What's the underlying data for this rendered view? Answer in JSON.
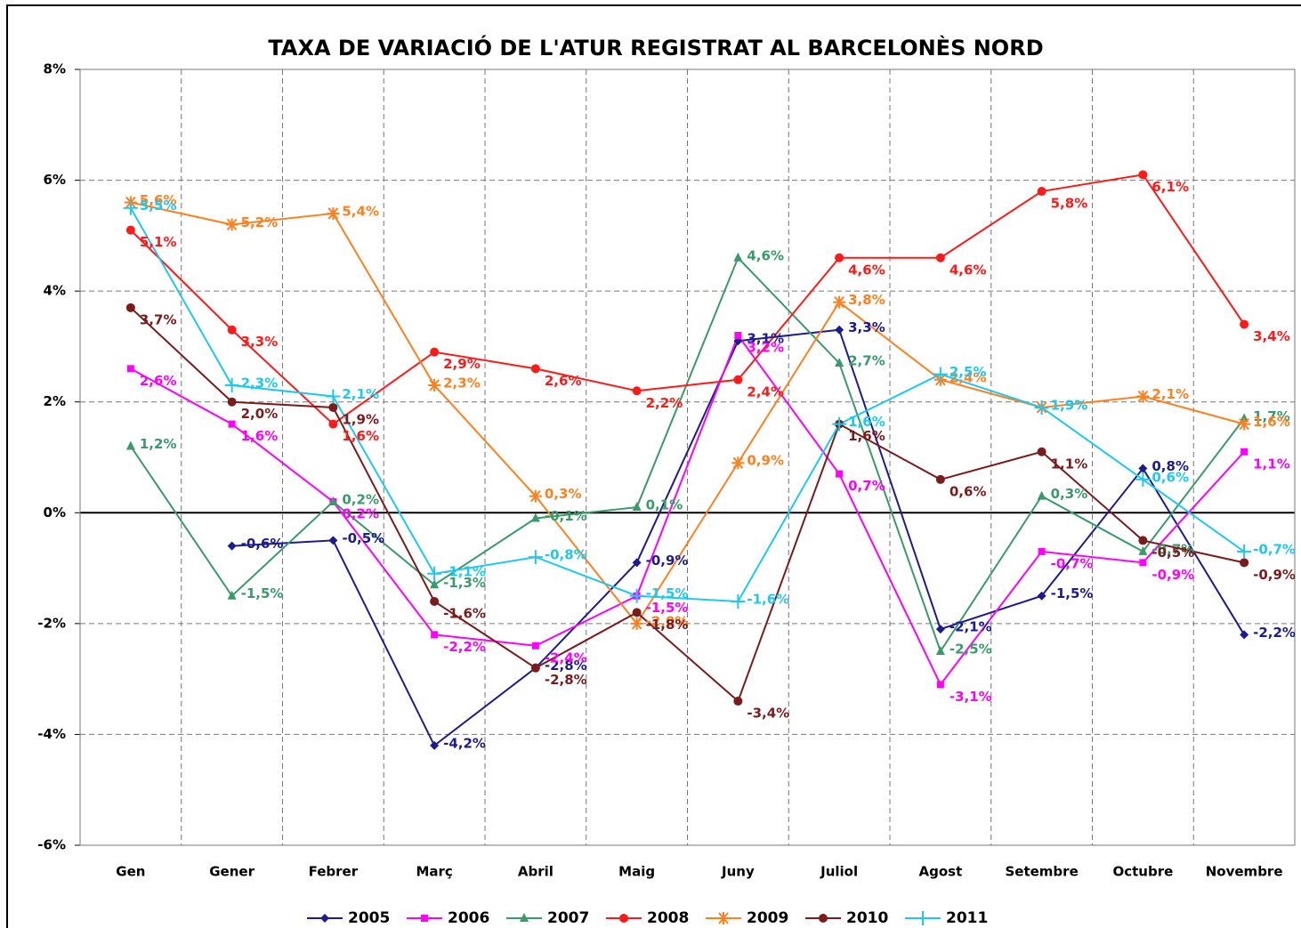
{
  "chart_data": {
    "type": "line",
    "title": "TAXA DE VARIACIÓ DE L'ATUR REGISTRAT AL BARCELONÈS NORD",
    "categories": [
      "Gen",
      "Gener",
      "Febrer",
      "Març",
      "Abril",
      "Maig",
      "Juny",
      "Juliol",
      "Agost",
      "Setembre",
      "Octubre",
      "Novembre"
    ],
    "ylim": [
      -6,
      8
    ],
    "yticks": [
      {
        "value": -6,
        "label": "-6%"
      },
      {
        "value": -4,
        "label": "-4%"
      },
      {
        "value": -2,
        "label": "-2%"
      },
      {
        "value": 0,
        "label": "0%"
      },
      {
        "value": 2,
        "label": "2%"
      },
      {
        "value": 4,
        "label": "4%"
      },
      {
        "value": 6,
        "label": "6%"
      },
      {
        "value": 8,
        "label": "8%"
      }
    ],
    "grid": true,
    "legend": "bottom",
    "series": [
      {
        "name": "2005",
        "color": "#1c1c8c",
        "marker": "diamond",
        "values": [
          null,
          -0.6,
          -0.5,
          -4.2,
          -2.8,
          -0.9,
          3.1,
          3.3,
          -2.1,
          -1.5,
          0.8,
          -2.2
        ],
        "value_labels": [
          null,
          "-0,6%",
          "-0,5%",
          "-4,2%",
          "-2,8%",
          "-0,9%",
          "3,1%",
          "3,3%",
          "-2,1%",
          "-1,5%",
          "0,8%",
          "-2,2%"
        ]
      },
      {
        "name": "2006",
        "color": "#ff00ff",
        "marker": "square",
        "values": [
          2.6,
          1.6,
          0.2,
          -2.2,
          -2.4,
          -1.5,
          3.2,
          0.7,
          -3.1,
          -0.7,
          -0.9,
          1.1
        ],
        "value_labels": [
          "2,6%",
          "1,6%",
          "0,2%",
          "-2,2%",
          "-2,4%",
          "-1,5%",
          "3,2%",
          "0,7%",
          "-3,1%",
          "-0,7%",
          "-0,9%",
          "1,1%"
        ]
      },
      {
        "name": "2007",
        "color": "#3a9a6a",
        "marker": "triangle",
        "values": [
          1.2,
          -1.5,
          0.2,
          -1.3,
          -0.1,
          0.1,
          4.6,
          2.7,
          -2.5,
          0.3,
          -0.7,
          1.7
        ],
        "value_labels": [
          "1,2%",
          "-1,5%",
          "0,2%",
          "-1,3%",
          "-0,1%",
          "0,1%",
          "4,6%",
          "2,7%",
          "-2,5%",
          "0,3%",
          "-0,7%",
          "1,7%"
        ]
      },
      {
        "name": "2008",
        "color": "#ff1a1a",
        "marker": "circle",
        "values": [
          5.1,
          3.3,
          1.6,
          2.9,
          2.6,
          2.2,
          2.4,
          4.6,
          4.6,
          5.8,
          6.1,
          3.4
        ],
        "value_labels": [
          "5,1%",
          "3,3%",
          "1,6%",
          "2,9%",
          "2,6%",
          "2,2%",
          "2,4%",
          "4,6%",
          "4,6%",
          "5,8%",
          "6,1%",
          "3,4%"
        ]
      },
      {
        "name": "2009",
        "color": "#ff8020",
        "marker": "asterisk",
        "values": [
          5.6,
          5.2,
          5.4,
          2.3,
          0.3,
          -2.0,
          0.9,
          3.8,
          2.4,
          1.9,
          2.1,
          1.6
        ],
        "value_labels": [
          "5,6%",
          "5,2%",
          "5,4%",
          "2,3%",
          "0,3%",
          "-2,0%",
          "0,9%",
          "3,8%",
          "2,4%",
          "1,9%",
          "2,1%",
          "1,6%"
        ]
      },
      {
        "name": "2010",
        "color": "#7a1c1c",
        "marker": "circle",
        "values": [
          3.7,
          2.0,
          1.9,
          -1.6,
          -2.8,
          -1.8,
          -3.4,
          1.6,
          0.6,
          1.1,
          -0.5,
          -0.9
        ],
        "value_labels": [
          "3,7%",
          "2,0%",
          "1,9%",
          "-1,6%",
          "-2,8%",
          "-1,8%",
          "-3,4%",
          "1,6%",
          "0,6%",
          "1,1%",
          "-0,5%",
          "-0,9%"
        ]
      },
      {
        "name": "2011",
        "color": "#1ec8f0",
        "marker": "plus",
        "values": [
          5.5,
          2.3,
          2.1,
          -1.1,
          -0.8,
          -1.5,
          -1.6,
          1.6,
          2.5,
          1.9,
          0.6,
          -0.7
        ],
        "value_labels": [
          "5,5%",
          "2,3%",
          "2,1%",
          "-1,1%",
          "-0,8%",
          "-1,5%",
          "-1,6%",
          "1,6%",
          "2,5%",
          "1,9%",
          "0,6%",
          "-0,7%"
        ]
      }
    ]
  }
}
